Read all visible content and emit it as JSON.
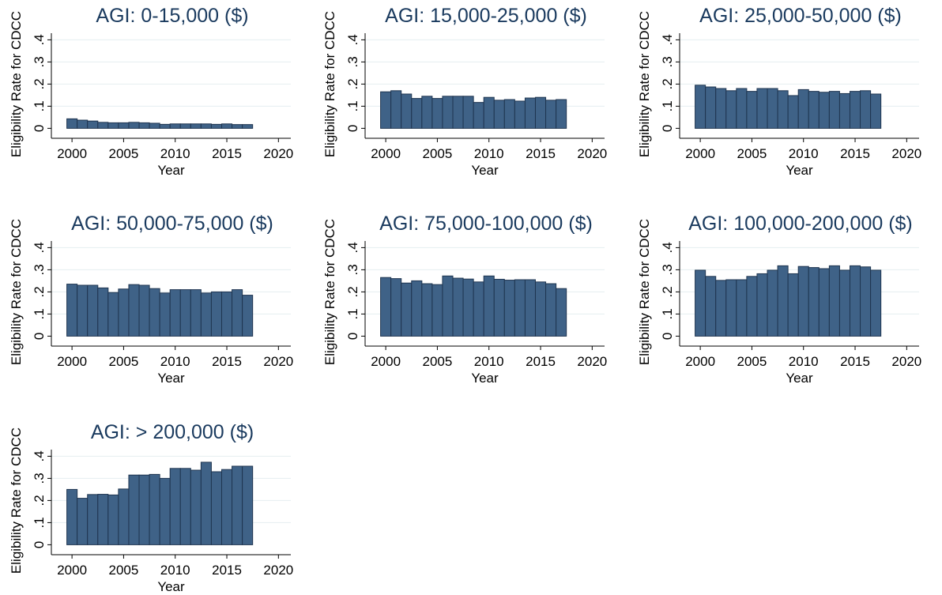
{
  "chart_data": [
    {
      "type": "bar",
      "title": "AGI: 0-15,000 ($)",
      "xlabel": "Year",
      "ylabel": "Eligibility Rate for CDCC",
      "color": "#3f6287",
      "grid": true,
      "x": [
        2000,
        2001,
        2002,
        2003,
        2004,
        2005,
        2006,
        2007,
        2008,
        2009,
        2010,
        2011,
        2012,
        2013,
        2014,
        2015,
        2016,
        2017
      ],
      "values": [
        0.043,
        0.037,
        0.033,
        0.027,
        0.025,
        0.025,
        0.027,
        0.025,
        0.023,
        0.018,
        0.02,
        0.02,
        0.02,
        0.02,
        0.018,
        0.02,
        0.017,
        0.017
      ],
      "xlim": [
        1998,
        2021.2
      ],
      "xticks": [
        2000,
        2005,
        2010,
        2015,
        2020
      ],
      "ylim": [
        -0.045,
        0.43
      ],
      "yticks": [
        0,
        {
          "value": 0.1,
          "label": ".1"
        },
        {
          "value": 0.2,
          "label": ".2"
        },
        {
          "value": 0.3,
          "label": ".3"
        },
        {
          "value": 0.4,
          "label": ".4"
        }
      ]
    },
    {
      "type": "bar",
      "title": "AGI: 15,000-25,000 ($)",
      "xlabel": "Year",
      "ylabel": "Eligibility Rate for CDCC",
      "color": "#3f6287",
      "grid": true,
      "x": [
        2000,
        2001,
        2002,
        2003,
        2004,
        2005,
        2006,
        2007,
        2008,
        2009,
        2010,
        2011,
        2012,
        2013,
        2014,
        2015,
        2016,
        2017
      ],
      "values": [
        0.165,
        0.17,
        0.155,
        0.135,
        0.145,
        0.135,
        0.145,
        0.145,
        0.145,
        0.117,
        0.14,
        0.127,
        0.13,
        0.123,
        0.137,
        0.14,
        0.127,
        0.13
      ],
      "xlim": [
        1998,
        2021.2
      ],
      "xticks": [
        2000,
        2005,
        2010,
        2015,
        2020
      ],
      "ylim": [
        -0.045,
        0.43
      ],
      "yticks": [
        0,
        {
          "value": 0.1,
          "label": ".1"
        },
        {
          "value": 0.2,
          "label": ".2"
        },
        {
          "value": 0.3,
          "label": ".3"
        },
        {
          "value": 0.4,
          "label": ".4"
        }
      ]
    },
    {
      "type": "bar",
      "title": "AGI: 25,000-50,000 ($)",
      "xlabel": "Year",
      "ylabel": "Eligibility Rate for CDCC",
      "color": "#3f6287",
      "grid": true,
      "x": [
        2000,
        2001,
        2002,
        2003,
        2004,
        2005,
        2006,
        2007,
        2008,
        2009,
        2010,
        2011,
        2012,
        2013,
        2014,
        2015,
        2016,
        2017
      ],
      "values": [
        0.195,
        0.187,
        0.18,
        0.17,
        0.18,
        0.167,
        0.18,
        0.18,
        0.17,
        0.148,
        0.175,
        0.167,
        0.163,
        0.167,
        0.157,
        0.167,
        0.17,
        0.155
      ],
      "xlim": [
        1998,
        2021.2
      ],
      "xticks": [
        2000,
        2005,
        2010,
        2015,
        2020
      ],
      "ylim": [
        -0.045,
        0.43
      ],
      "yticks": [
        0,
        {
          "value": 0.1,
          "label": ".1"
        },
        {
          "value": 0.2,
          "label": ".2"
        },
        {
          "value": 0.3,
          "label": ".3"
        },
        {
          "value": 0.4,
          "label": ".4"
        }
      ]
    },
    {
      "type": "bar",
      "title": "AGI: 50,000-75,000 ($)",
      "xlabel": "Year",
      "ylabel": "Eligibility Rate for CDCC",
      "color": "#3f6287",
      "grid": true,
      "x": [
        2000,
        2001,
        2002,
        2003,
        2004,
        2005,
        2006,
        2007,
        2008,
        2009,
        2010,
        2011,
        2012,
        2013,
        2014,
        2015,
        2016,
        2017
      ],
      "values": [
        0.235,
        0.23,
        0.23,
        0.218,
        0.197,
        0.213,
        0.233,
        0.23,
        0.215,
        0.195,
        0.21,
        0.21,
        0.21,
        0.195,
        0.2,
        0.2,
        0.21,
        0.185
      ],
      "xlim": [
        1998,
        2021.2
      ],
      "xticks": [
        2000,
        2005,
        2010,
        2015,
        2020
      ],
      "ylim": [
        -0.045,
        0.43
      ],
      "yticks": [
        0,
        {
          "value": 0.1,
          "label": ".1"
        },
        {
          "value": 0.2,
          "label": ".2"
        },
        {
          "value": 0.3,
          "label": ".3"
        },
        {
          "value": 0.4,
          "label": ".4"
        }
      ]
    },
    {
      "type": "bar",
      "title": "AGI: 75,000-100,000 ($)",
      "xlabel": "Year",
      "ylabel": "Eligibility Rate for CDCC",
      "color": "#3f6287",
      "grid": true,
      "x": [
        2000,
        2001,
        2002,
        2003,
        2004,
        2005,
        2006,
        2007,
        2008,
        2009,
        2010,
        2011,
        2012,
        2013,
        2014,
        2015,
        2016,
        2017
      ],
      "values": [
        0.265,
        0.26,
        0.24,
        0.25,
        0.237,
        0.233,
        0.272,
        0.262,
        0.258,
        0.245,
        0.272,
        0.257,
        0.253,
        0.255,
        0.255,
        0.245,
        0.237,
        0.215
      ],
      "xlim": [
        1998,
        2021.2
      ],
      "xticks": [
        2000,
        2005,
        2010,
        2015,
        2020
      ],
      "ylim": [
        -0.045,
        0.43
      ],
      "yticks": [
        0,
        {
          "value": 0.1,
          "label": ".1"
        },
        {
          "value": 0.2,
          "label": ".2"
        },
        {
          "value": 0.3,
          "label": ".3"
        },
        {
          "value": 0.4,
          "label": ".4"
        }
      ]
    },
    {
      "type": "bar",
      "title": "AGI: 100,000-200,000 ($)",
      "xlabel": "Year",
      "ylabel": "Eligibility Rate for CDCC",
      "color": "#3f6287",
      "grid": true,
      "x": [
        2000,
        2001,
        2002,
        2003,
        2004,
        2005,
        2006,
        2007,
        2008,
        2009,
        2010,
        2011,
        2012,
        2013,
        2014,
        2015,
        2016,
        2017
      ],
      "values": [
        0.298,
        0.27,
        0.252,
        0.255,
        0.255,
        0.27,
        0.282,
        0.298,
        0.318,
        0.282,
        0.315,
        0.31,
        0.305,
        0.318,
        0.298,
        0.318,
        0.313,
        0.298
      ],
      "xlim": [
        1998,
        2021.2
      ],
      "xticks": [
        2000,
        2005,
        2010,
        2015,
        2020
      ],
      "ylim": [
        -0.045,
        0.43
      ],
      "yticks": [
        0,
        {
          "value": 0.1,
          "label": ".1"
        },
        {
          "value": 0.2,
          "label": ".2"
        },
        {
          "value": 0.3,
          "label": ".3"
        },
        {
          "value": 0.4,
          "label": ".4"
        }
      ]
    },
    {
      "type": "bar",
      "title": "AGI: > 200,000 ($)",
      "xlabel": "Year",
      "ylabel": "Eligibility Rate for CDCC",
      "color": "#3f6287",
      "grid": true,
      "x": [
        2000,
        2001,
        2002,
        2003,
        2004,
        2005,
        2006,
        2007,
        2008,
        2009,
        2010,
        2011,
        2012,
        2013,
        2014,
        2015,
        2016,
        2017
      ],
      "values": [
        0.25,
        0.21,
        0.227,
        0.228,
        0.225,
        0.252,
        0.315,
        0.315,
        0.318,
        0.3,
        0.345,
        0.345,
        0.337,
        0.373,
        0.33,
        0.34,
        0.355,
        0.355
      ],
      "xlim": [
        1998,
        2021.2
      ],
      "xticks": [
        2000,
        2005,
        2010,
        2015,
        2020
      ],
      "ylim": [
        -0.045,
        0.43
      ],
      "yticks": [
        0,
        {
          "value": 0.1,
          "label": ".1"
        },
        {
          "value": 0.2,
          "label": ".2"
        },
        {
          "value": 0.3,
          "label": ".3"
        },
        {
          "value": 0.4,
          "label": ".4"
        }
      ]
    }
  ]
}
